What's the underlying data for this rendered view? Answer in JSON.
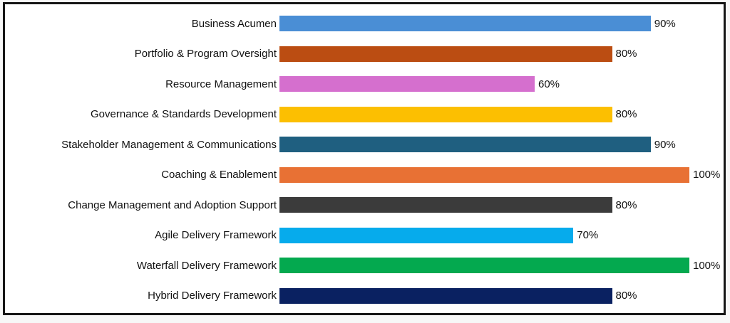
{
  "chart_data": {
    "type": "bar",
    "orientation": "horizontal",
    "title": "",
    "xlabel": "",
    "ylabel": "",
    "xlim": [
      0,
      100
    ],
    "grid": false,
    "legend": false,
    "value_suffix": "%",
    "categories": [
      "Business Acumen",
      "Portfolio & Program Oversight",
      "Resource Management",
      "Governance & Standards Development",
      "Stakeholder Management & Communications",
      "Coaching & Enablement",
      "Change Management and Adoption Support",
      "Agile Delivery Framework",
      "Waterfall Delivery Framework",
      "Hybrid Delivery Framework"
    ],
    "values": [
      90,
      80,
      60,
      80,
      90,
      100,
      80,
      70,
      100,
      80
    ],
    "value_labels": [
      "90%",
      "80%",
      "60%",
      "80%",
      "90%",
      "100%",
      "80%",
      "70%",
      "100%",
      "80%"
    ],
    "colors": [
      "#4a8ed5",
      "#bb4d12",
      "#d56fce",
      "#fcbf01",
      "#1f5f80",
      "#e87134",
      "#3b3b3b",
      "#06abec",
      "#04a94f",
      "#0a2161"
    ]
  },
  "frame": {
    "border_color": "#151515",
    "background": "#ffffff"
  }
}
